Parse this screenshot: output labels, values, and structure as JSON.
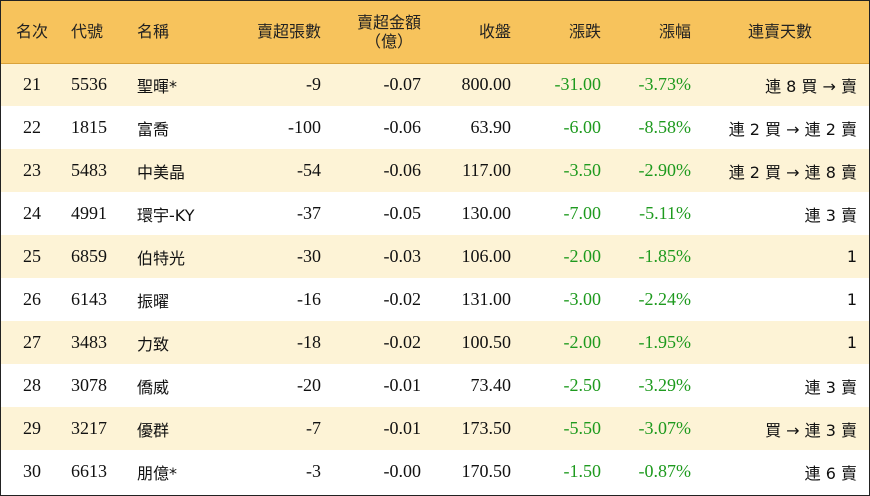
{
  "headers": {
    "rank": "名次",
    "code": "代號",
    "name": "名稱",
    "net_sell_shares": "賣超張數",
    "net_sell_amount_line1": "賣超金額",
    "net_sell_amount_line2": "（億）",
    "close": "收盤",
    "change": "漲跌",
    "change_pct": "漲幅",
    "streak": "連賣天數"
  },
  "rows": [
    {
      "rank": "21",
      "code": "5536",
      "name": "聖暉*",
      "shares": "-9",
      "amount": "-0.07",
      "close": "800.00",
      "change": "-31.00",
      "pct": "-3.73%",
      "streak": "連 8 買 → 賣"
    },
    {
      "rank": "22",
      "code": "1815",
      "name": "富喬",
      "shares": "-100",
      "amount": "-0.06",
      "close": "63.90",
      "change": "-6.00",
      "pct": "-8.58%",
      "streak": "連 2 買 → 連 2 賣"
    },
    {
      "rank": "23",
      "code": "5483",
      "name": "中美晶",
      "shares": "-54",
      "amount": "-0.06",
      "close": "117.00",
      "change": "-3.50",
      "pct": "-2.90%",
      "streak": "連 2 買 → 連 8 賣"
    },
    {
      "rank": "24",
      "code": "4991",
      "name": "環宇-KY",
      "shares": "-37",
      "amount": "-0.05",
      "close": "130.00",
      "change": "-7.00",
      "pct": "-5.11%",
      "streak": "連 3 賣"
    },
    {
      "rank": "25",
      "code": "6859",
      "name": "伯特光",
      "shares": "-30",
      "amount": "-0.03",
      "close": "106.00",
      "change": "-2.00",
      "pct": "-1.85%",
      "streak": "1"
    },
    {
      "rank": "26",
      "code": "6143",
      "name": "振曜",
      "shares": "-16",
      "amount": "-0.02",
      "close": "131.00",
      "change": "-3.00",
      "pct": "-2.24%",
      "streak": "1"
    },
    {
      "rank": "27",
      "code": "3483",
      "name": "力致",
      "shares": "-18",
      "amount": "-0.02",
      "close": "100.50",
      "change": "-2.00",
      "pct": "-1.95%",
      "streak": "1"
    },
    {
      "rank": "28",
      "code": "3078",
      "name": "僑威",
      "shares": "-20",
      "amount": "-0.01",
      "close": "73.40",
      "change": "-2.50",
      "pct": "-3.29%",
      "streak": "連 3 賣"
    },
    {
      "rank": "29",
      "code": "3217",
      "name": "優群",
      "shares": "-7",
      "amount": "-0.01",
      "close": "173.50",
      "change": "-5.50",
      "pct": "-3.07%",
      "streak": "買 → 連 3 賣"
    },
    {
      "rank": "30",
      "code": "6613",
      "name": "朋億*",
      "shares": "-3",
      "amount": "-0.00",
      "close": "170.50",
      "change": "-1.50",
      "pct": "-0.87%",
      "streak": "連 6 賣"
    }
  ],
  "colors": {
    "header_bg": "#f7c35c",
    "odd_row_bg": "#fdf3d6",
    "even_row_bg": "#ffffff",
    "negative_change": "#1e9a1e"
  }
}
